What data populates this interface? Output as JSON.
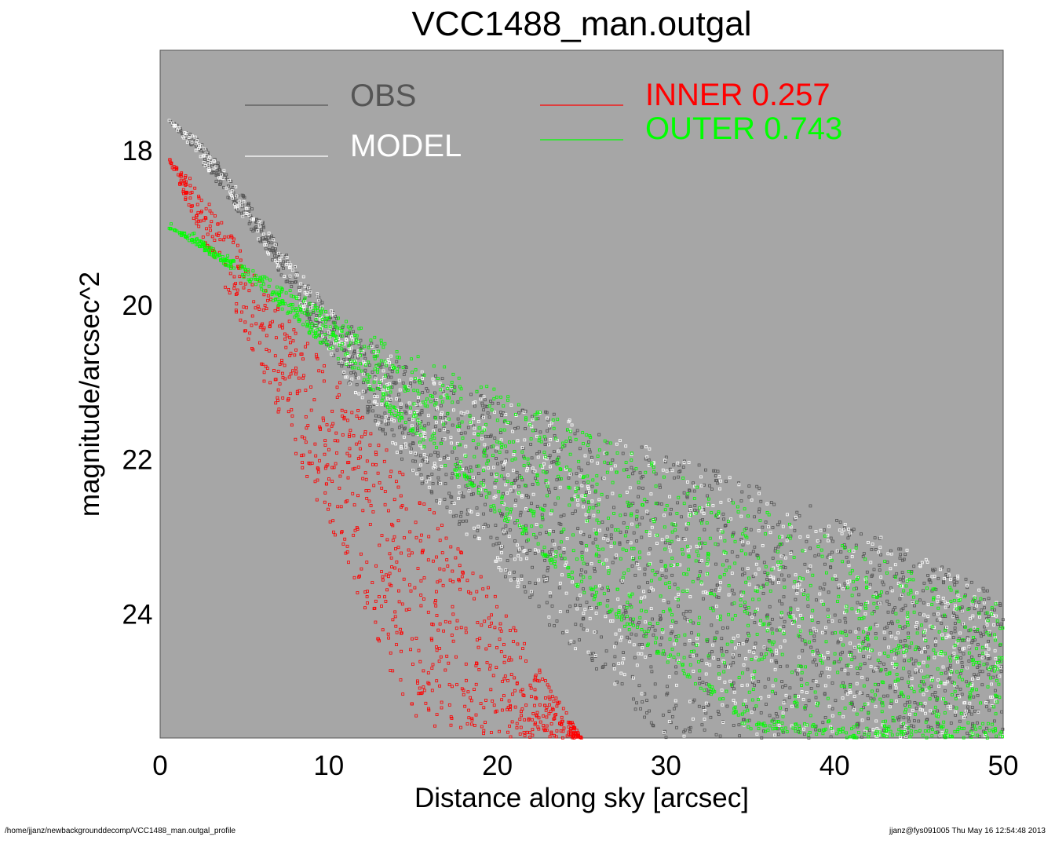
{
  "chart_data": {
    "type": "scatter",
    "title": "VCC1488_man.outgal",
    "xlabel": "Distance along sky [arcsec]",
    "ylabel": "magnitude/arcsec^2",
    "xlim": [
      0,
      50
    ],
    "ylim": [
      25.6,
      16.7
    ],
    "y_inverted": true,
    "x_ticks": [
      0,
      10,
      20,
      30,
      40,
      50
    ],
    "y_ticks": [
      18,
      20,
      22,
      24
    ],
    "plot_background": "#a6a6a6",
    "legend": [
      {
        "name": "OBS",
        "color": "#555555"
      },
      {
        "name": "MODEL",
        "color": "#ffffff"
      },
      {
        "name": "INNER",
        "value": "0.257",
        "color": "#ff0000"
      },
      {
        "name": "OUTER",
        "value": "0.743",
        "color": "#00ff00"
      }
    ],
    "series": [
      {
        "name": "OBS",
        "color": "#555555",
        "x": [
          0.5,
          2,
          4,
          6,
          8,
          10,
          12,
          15,
          20,
          25,
          30,
          35,
          40,
          45,
          50
        ],
        "y_low": [
          17.6,
          17.8,
          18.3,
          18.9,
          19.5,
          20.0,
          20.4,
          20.8,
          21.2,
          21.5,
          21.9,
          22.3,
          22.7,
          23.2,
          23.8
        ],
        "y_high": [
          17.6,
          18.0,
          18.6,
          19.2,
          19.9,
          20.6,
          21.3,
          22.2,
          23.4,
          24.6,
          25.6,
          25.6,
          25.6,
          25.6,
          25.6
        ]
      },
      {
        "name": "MODEL",
        "color": "#ffffff",
        "x": [
          0.5,
          2,
          4,
          6,
          8,
          10,
          12,
          15,
          20,
          25,
          30,
          35,
          40,
          45,
          50
        ],
        "y_low": [
          17.6,
          17.8,
          18.3,
          18.9,
          19.5,
          20.0,
          20.4,
          20.8,
          21.2,
          21.5,
          21.9,
          22.3,
          22.7,
          23.2,
          23.8
        ],
        "y_high": [
          17.6,
          18.0,
          18.6,
          19.2,
          19.9,
          20.6,
          21.3,
          22.2,
          23.4,
          24.6,
          25.6,
          25.6,
          25.6,
          25.6,
          25.6
        ]
      },
      {
        "name": "INNER",
        "color": "#ff0000",
        "x": [
          0.5,
          2,
          4,
          6,
          8,
          10,
          12,
          15,
          20,
          25
        ],
        "y_low": [
          18.1,
          18.4,
          19.0,
          19.7,
          20.3,
          20.8,
          21.4,
          22.3,
          23.8,
          25.6
        ],
        "y_high": [
          18.1,
          18.9,
          19.9,
          20.9,
          21.9,
          22.9,
          23.9,
          25.4,
          25.6,
          25.6
        ]
      },
      {
        "name": "OUTER",
        "color": "#00ff00",
        "x": [
          0.5,
          2,
          4,
          6,
          8,
          10,
          12,
          15,
          20,
          25,
          30,
          35,
          40,
          45,
          50
        ],
        "y_low": [
          19.0,
          19.1,
          19.4,
          19.6,
          19.8,
          20.1,
          20.3,
          20.6,
          21.1,
          21.6,
          22.1,
          22.6,
          23.0,
          23.5,
          23.9
        ],
        "y_high": [
          19.0,
          19.2,
          19.5,
          19.8,
          20.2,
          20.6,
          21.0,
          21.7,
          22.7,
          23.7,
          24.6,
          25.5,
          25.6,
          25.6,
          25.6
        ]
      }
    ]
  },
  "footer": {
    "left": "/home/jjanz/newbackgrounddecomp/VCC1488_man.outgal_profile",
    "right": "jjanz@fys091005  Thu May 16 12:54:48 2013"
  }
}
